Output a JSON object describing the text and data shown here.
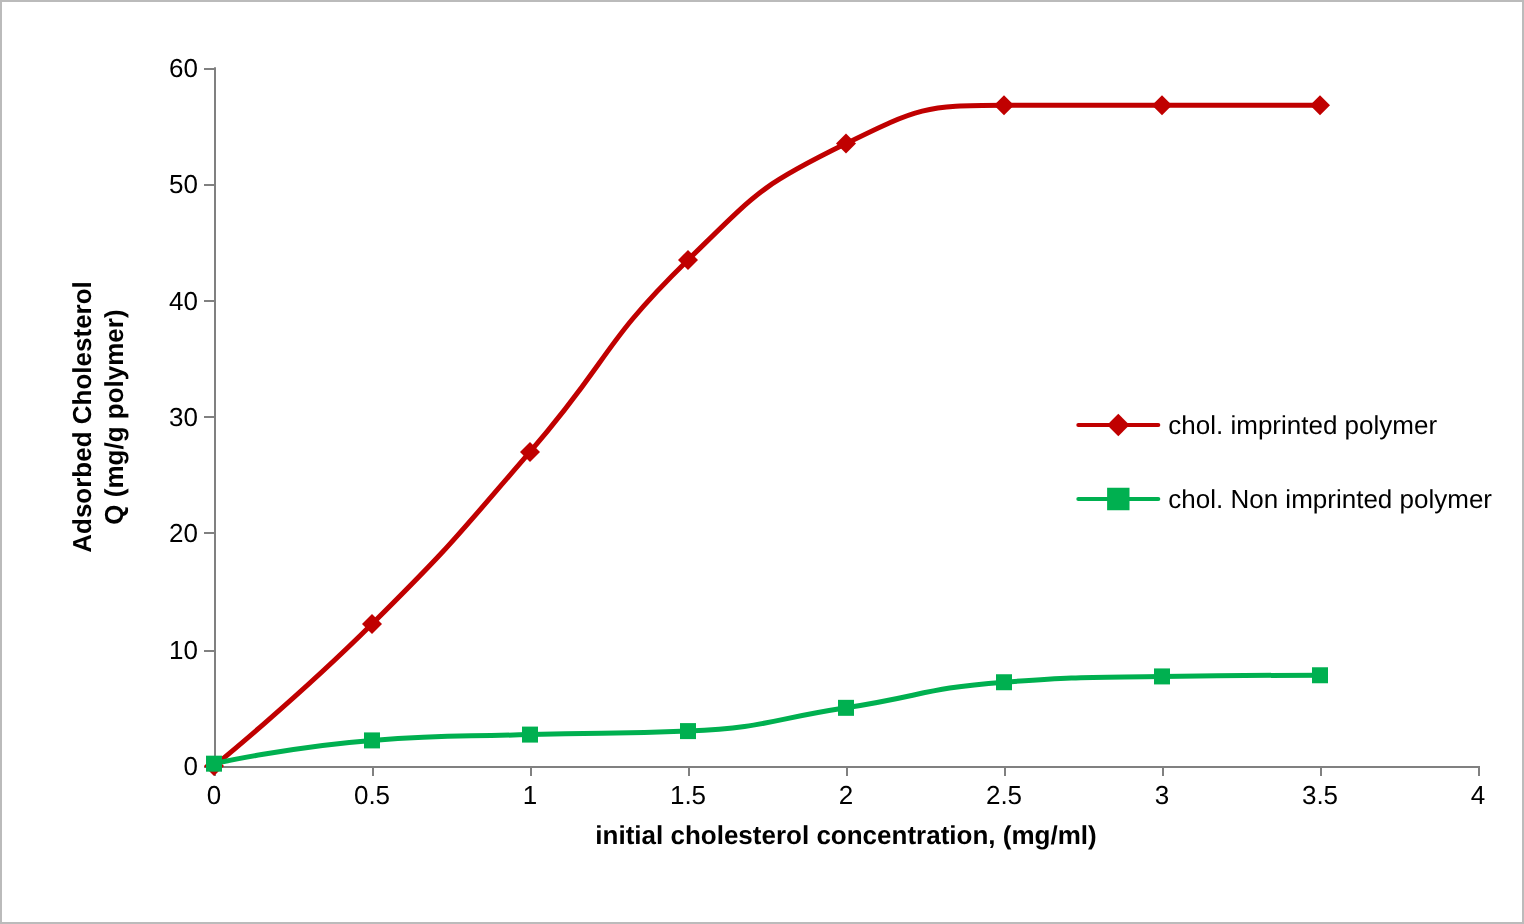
{
  "chart_data": {
    "type": "line",
    "xlabel": "initial cholesterol concentration, (mg/ml)",
    "ylabel": "Adsorbed Cholesterol\nQ (mg/g polymer)",
    "x": [
      0,
      0.5,
      1,
      1.5,
      2,
      2.5,
      3,
      3.5
    ],
    "series": [
      {
        "name": "chol. imprinted polymer",
        "color": "#c00000",
        "marker": "diamond",
        "values": [
          0,
          12.2,
          27,
          43.5,
          53.5,
          56.8,
          56.8,
          56.8
        ]
      },
      {
        "name": "chol. Non imprinted polymer",
        "color": "#00b050",
        "marker": "square",
        "values": [
          0.2,
          2.2,
          2.7,
          3,
          5,
          7.2,
          7.7,
          7.8
        ]
      }
    ],
    "xlim": [
      0,
      4
    ],
    "xticks": [
      0,
      0.5,
      1,
      1.5,
      2,
      2.5,
      3,
      3.5,
      4
    ],
    "ylim": [
      0,
      60
    ],
    "yticks": [
      0,
      10,
      20,
      30,
      40,
      50,
      60
    ],
    "grid": false,
    "legend": "right",
    "line_style": "solid"
  }
}
